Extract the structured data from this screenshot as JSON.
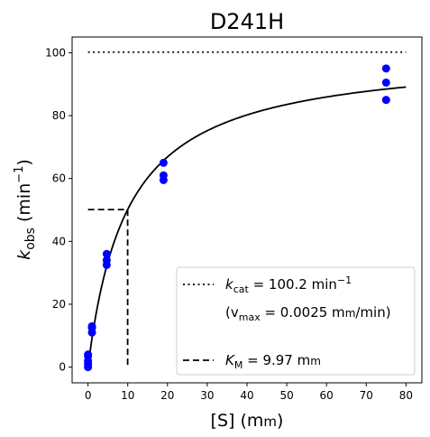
{
  "chart_data": {
    "type": "scatter",
    "title": "D241H",
    "xlabel": {
      "main": "[S] (m",
      "unit_small": "m",
      "close": ")"
    },
    "ylabel": {
      "k": "k",
      "sub": "obs",
      "paren_open": " (min",
      "sup": "−1",
      "paren_close": ")"
    },
    "xlim": [
      -4,
      84
    ],
    "ylim": [
      -5,
      105
    ],
    "xticks": [
      0,
      10,
      20,
      30,
      40,
      50,
      60,
      70,
      80
    ],
    "yticks": [
      0,
      20,
      40,
      60,
      80,
      100
    ],
    "grid": false,
    "legend_position": "lower right",
    "series": [
      {
        "kind": "points",
        "color": "#0000ff",
        "x": [
          0,
          0,
          0,
          0,
          0,
          1,
          1,
          1,
          4.7,
          4.7,
          4.7,
          19,
          19,
          19,
          75,
          75,
          75
        ],
        "y": [
          0,
          1,
          2,
          3.5,
          4,
          11,
          12.5,
          13,
          32.5,
          34,
          36,
          59.5,
          61,
          65,
          85,
          90.5,
          95
        ]
      },
      {
        "kind": "fit_curve",
        "color": "#000000",
        "vmax": 100.2,
        "km": 9.97,
        "x_range": [
          0,
          80
        ]
      },
      {
        "kind": "kcat_line",
        "style": "dotted",
        "color": "#000000",
        "y": 100.2,
        "x_range": [
          0,
          80
        ]
      },
      {
        "kind": "km_guide",
        "style": "dashed",
        "color": "#000000",
        "x": 9.97,
        "y": 50.1
      }
    ],
    "legend": [
      {
        "style": "dotted",
        "k": "k",
        "sub": "cat",
        "text": " = 100.2 min",
        "sup": "−1"
      },
      {
        "style": "none",
        "text_a": "(v",
        "sub": "max",
        "text_b": " = 0.0025 m",
        "unit_small": "m",
        "text_c": "/min)"
      },
      {
        "style": "dashed",
        "k": "K",
        "sub": "M",
        "text": " = 9.97 m",
        "unit_small": "m"
      }
    ]
  }
}
